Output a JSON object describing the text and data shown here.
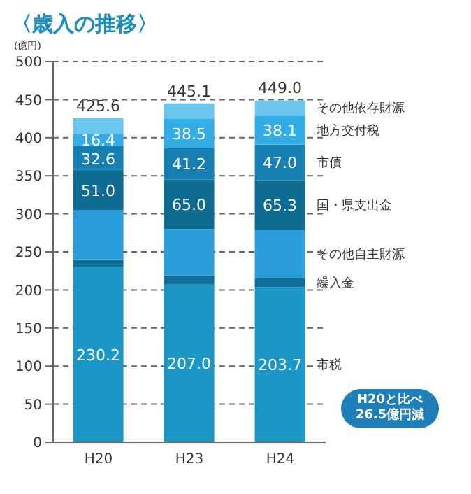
{
  "chart_data": {
    "type": "bar",
    "title": "〈歳入の推移〉",
    "ylabel": "(億円)",
    "categories": [
      "H20",
      "H23",
      "H24"
    ],
    "stacked": true,
    "legend": "right",
    "grid": "y",
    "ylim": [
      0,
      500
    ],
    "yticks": [
      0,
      50,
      100,
      150,
      200,
      250,
      300,
      350,
      400,
      450,
      500
    ],
    "series": [
      {
        "name": "市税",
        "color": "#1a97c6",
        "values": [
          230.2,
          207.0,
          203.7
        ],
        "value_labels": [
          "230.2",
          "207.0",
          "203.7"
        ]
      },
      {
        "name": "繰入金",
        "color": "#0f6f99",
        "values": [
          10,
          12,
          12
        ]
      },
      {
        "name": "その他自主財源",
        "color": "#2a9edd",
        "values": [
          65,
          61,
          63
        ]
      },
      {
        "name": "国・県支出金",
        "color": "#0e6b92",
        "values": [
          51.0,
          65.0,
          65.3
        ],
        "value_labels": [
          "51.0",
          "65.0",
          "65.3"
        ]
      },
      {
        "name": "市債",
        "color": "#1780b2",
        "values": [
          32.6,
          41.2,
          47.0
        ],
        "value_labels": [
          "32.6",
          "41.2",
          "47.0"
        ]
      },
      {
        "name": "地方交付税",
        "color": "#33ade6",
        "values": [
          16.4,
          38.5,
          38.1
        ],
        "value_labels": [
          "16.4",
          "38.5",
          "38.1"
        ]
      },
      {
        "name": "その他依存財源",
        "color": "#6cc7ef",
        "values": [
          20.4,
          20.4,
          19.9
        ]
      }
    ],
    "totals": [
      "425.6",
      "445.1",
      "449.0"
    ],
    "annotations": [
      "H20と比べ26.5億円減"
    ]
  }
}
